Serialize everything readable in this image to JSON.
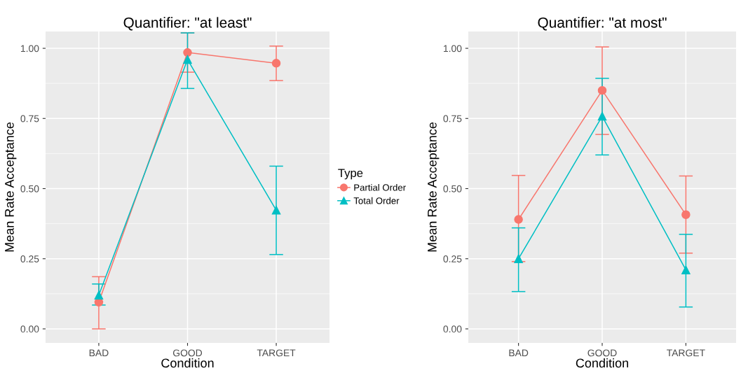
{
  "chart_data": [
    {
      "type": "line",
      "title": "Quantifier: \"at least\"",
      "xlabel": "Condition",
      "ylabel": "Mean Rate Acceptance",
      "legend_title": "Type",
      "legend": "right",
      "grid": true,
      "categories": [
        "BAD",
        "GOOD",
        "TARGET"
      ],
      "ylim": [
        -0.05,
        1.06
      ],
      "yticks": [
        {
          "value": 0,
          "label": "0.00"
        },
        {
          "value": 0.25,
          "label": "0.25"
        },
        {
          "value": 0.5,
          "label": "0.50"
        },
        {
          "value": 0.75,
          "label": "0.75"
        },
        {
          "value": 1,
          "label": "1.00"
        }
      ],
      "series": [
        {
          "name": "Partial Order",
          "color": "#f8766d",
          "marker": "circle",
          "values": [
            0.095,
            0.985,
            0.947
          ],
          "errors": [
            [
              0.0,
              0.186
            ],
            [
              0.915,
              1.055
            ],
            [
              0.885,
              1.008
            ]
          ]
        },
        {
          "name": "Total Order",
          "color": "#00bfc4",
          "marker": "triangle",
          "values": [
            0.12,
            0.96,
            0.423
          ],
          "errors": [
            [
              0.085,
              0.16
            ],
            [
              0.857,
              1.055
            ],
            [
              0.265,
              0.58
            ]
          ]
        }
      ]
    },
    {
      "type": "line",
      "title": "Quantifier: \"at most\"",
      "xlabel": "Condition",
      "ylabel": "Mean Rate Acceptance",
      "grid": true,
      "categories": [
        "BAD",
        "GOOD",
        "TARGET"
      ],
      "ylim": [
        -0.05,
        1.06
      ],
      "yticks": [
        {
          "value": 0,
          "label": "0.00"
        },
        {
          "value": 0.25,
          "label": "0.25"
        },
        {
          "value": 0.5,
          "label": "0.50"
        },
        {
          "value": 0.75,
          "label": "0.75"
        },
        {
          "value": 1,
          "label": "1.00"
        }
      ],
      "series": [
        {
          "color": "#f8766d",
          "marker": "circle",
          "values": [
            0.39,
            0.85,
            0.407
          ],
          "errors": [
            [
              0.24,
              0.547
            ],
            [
              0.693,
              1.005
            ],
            [
              0.27,
              0.545
            ]
          ]
        },
        {
          "color": "#00bfc4",
          "marker": "triangle",
          "values": [
            0.25,
            0.758,
            0.21
          ],
          "errors": [
            [
              0.133,
              0.36
            ],
            [
              0.62,
              0.893
            ],
            [
              0.078,
              0.337
            ]
          ]
        }
      ]
    }
  ]
}
